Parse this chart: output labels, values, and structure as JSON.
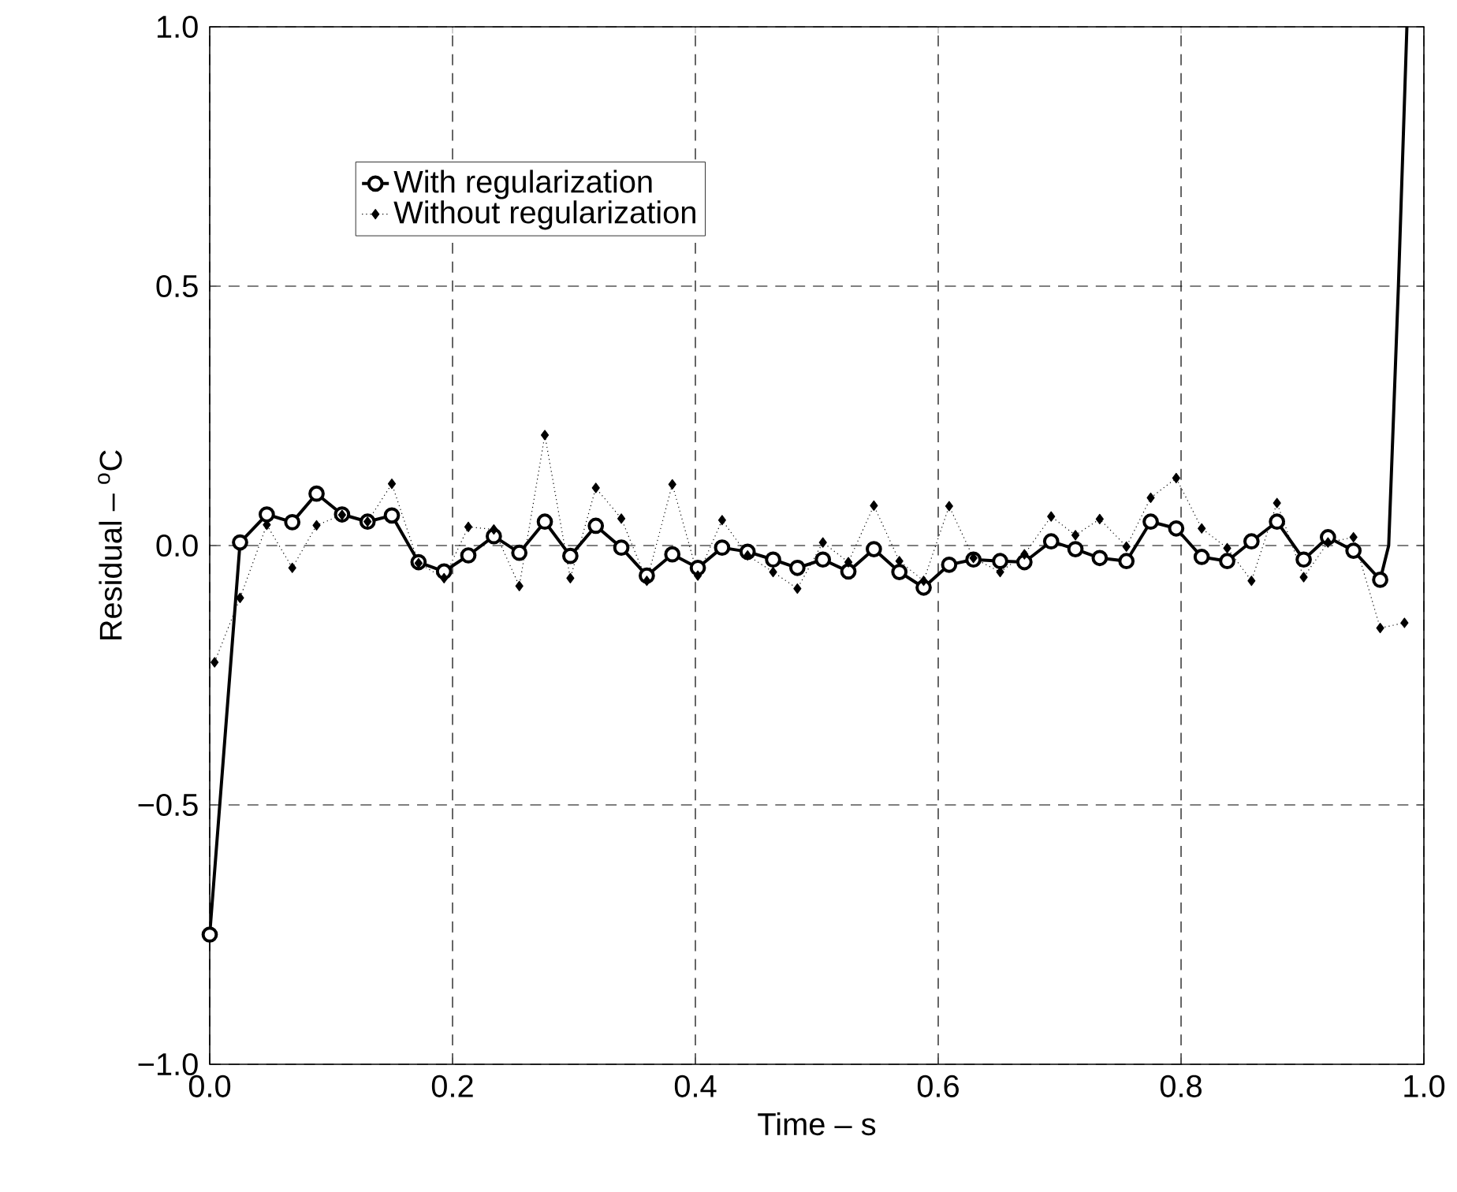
{
  "chart_data": {
    "type": "line",
    "xlabel": "Time – s",
    "ylabel": "Residual – $^{o}$C",
    "xlim": [
      0,
      1
    ],
    "ylim": [
      -1,
      1
    ],
    "xticks": [
      {
        "value": 0,
        "label": "0.0"
      },
      {
        "value": 0.2,
        "label": "0.2"
      },
      {
        "value": 0.4,
        "label": "0.4"
      },
      {
        "value": 0.6,
        "label": "0.6"
      },
      {
        "value": 0.8,
        "label": "0.8"
      },
      {
        "value": 1,
        "label": "1.0"
      }
    ],
    "yticks": [
      {
        "value": -1,
        "label": "−1.0"
      },
      {
        "value": -0.5,
        "label": "−0.5"
      },
      {
        "value": 0,
        "label": "0.0"
      },
      {
        "value": 0.5,
        "label": "0.5"
      },
      {
        "value": 1,
        "label": "1.0"
      }
    ],
    "grid": true,
    "legend": "top left",
    "series": [
      {
        "name": "With regularization",
        "color": "#000000",
        "marker": "circle",
        "line_style": "solid",
        "x": [
          0,
          0.025,
          0.047,
          0.068,
          0.088,
          0.109,
          0.13,
          0.15,
          0.172,
          0.193,
          0.213,
          0.234,
          0.255,
          0.276,
          0.297,
          0.318,
          0.339,
          0.36,
          0.381,
          0.402,
          0.422,
          0.443,
          0.464,
          0.484,
          0.505,
          0.526,
          0.547,
          0.568,
          0.588,
          0.609,
          0.629,
          0.651,
          0.671,
          0.693,
          0.713,
          0.733,
          0.755,
          0.775,
          0.796,
          0.817,
          0.838,
          0.858,
          0.879,
          0.901,
          0.921,
          0.942,
          0.964
        ],
        "values": [
          -0.75,
          0.006,
          0.06,
          0.045,
          0.1,
          0.06,
          0.046,
          0.058,
          -0.032,
          -0.05,
          -0.019,
          0.018,
          -0.014,
          0.046,
          -0.02,
          0.038,
          -0.004,
          -0.058,
          -0.017,
          -0.043,
          -0.004,
          -0.012,
          -0.027,
          -0.043,
          -0.027,
          -0.05,
          -0.007,
          -0.051,
          -0.081,
          -0.037,
          -0.027,
          -0.03,
          -0.032,
          0.008,
          -0.007,
          -0.024,
          -0.03,
          0.046,
          0.033,
          -0.022,
          -0.03,
          0.008,
          0.046,
          -0.027,
          0.016,
          -0.01,
          -0.066
        ]
      },
      {
        "name": "Without regularization",
        "color": "#000000",
        "marker": "diamond",
        "line_style": "dotted",
        "x": [
          0.004,
          0.025,
          0.047,
          0.068,
          0.088,
          0.109,
          0.13,
          0.15,
          0.172,
          0.193,
          0.213,
          0.234,
          0.255,
          0.276,
          0.297,
          0.318,
          0.339,
          0.36,
          0.381,
          0.402,
          0.422,
          0.443,
          0.464,
          0.484,
          0.505,
          0.526,
          0.547,
          0.568,
          0.588,
          0.609,
          0.629,
          0.651,
          0.671,
          0.693,
          0.713,
          0.733,
          0.755,
          0.775,
          0.796,
          0.817,
          0.838,
          0.858,
          0.879,
          0.901,
          0.921,
          0.942,
          0.964,
          0.984
        ],
        "values": [
          -0.225,
          -0.101,
          0.04,
          -0.043,
          0.039,
          0.059,
          0.046,
          0.119,
          -0.034,
          -0.063,
          0.036,
          0.031,
          -0.078,
          0.213,
          -0.063,
          0.111,
          0.052,
          -0.068,
          0.118,
          -0.058,
          0.049,
          -0.019,
          -0.051,
          -0.083,
          0.006,
          -0.032,
          0.077,
          -0.03,
          -0.068,
          0.076,
          -0.024,
          -0.051,
          -0.017,
          0.056,
          0.02,
          0.051,
          -0.002,
          0.092,
          0.13,
          0.033,
          -0.005,
          -0.068,
          0.082,
          -0.061,
          0.006,
          0.016,
          -0.159,
          -0.149
        ]
      },
      {
        "color": "#000000",
        "marker": "none",
        "line_style": "solid",
        "x": [
          0.964,
          0.971,
          0.979,
          0.986
        ],
        "values": [
          -0.066,
          0.0,
          0.5,
          1.0
        ]
      }
    ]
  }
}
